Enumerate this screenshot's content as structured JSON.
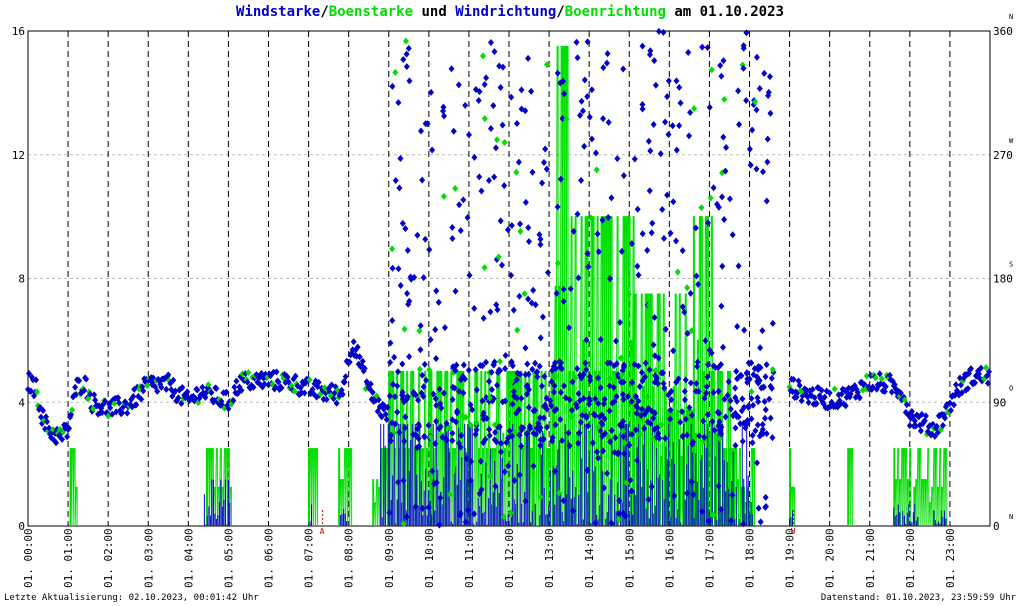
{
  "title": {
    "part1": "Windstarke",
    "sep1": "/",
    "part2": "Boenstarke",
    "part3": " und ",
    "part4": "Windrichtung",
    "sep2": "/",
    "part5": "Boenrichtung",
    "part6": " am 01.10.2023"
  },
  "footer": {
    "left": "Letzte Aktualisierung: 02.10.2023, 00:01:42 Uhr",
    "right": "Datenstand: 01.10.2023, 23:59:59 Uhr"
  },
  "colors": {
    "wind": "#0000cc",
    "gust": "#00dd00",
    "grid_major": "#000000",
    "grid_minor": "#bbbbbb",
    "marker": "#cc0000"
  },
  "chart_data": {
    "type": "line",
    "x_unit": "hour",
    "xlim": [
      0,
      24
    ],
    "ylim": [
      0,
      16
    ],
    "y2lim": [
      0,
      360
    ],
    "y_ticks": [
      "0",
      "4",
      "8",
      "12",
      "16"
    ],
    "y2_ticks": [
      "0",
      "90",
      "180",
      "270",
      "360"
    ],
    "compass_labels": [
      {
        "value": 0,
        "label": "N"
      },
      {
        "value": 90,
        "label": "O"
      },
      {
        "value": 180,
        "label": "S"
      },
      {
        "value": 270,
        "label": "W"
      },
      {
        "value": 360,
        "label": "N"
      }
    ],
    "x_tick_labels": [
      "01. 00:00",
      "01. 01:00",
      "01. 02:00",
      "01. 03:00",
      "01. 04:00",
      "01. 05:00",
      "01. 06:00",
      "01. 07:00",
      "01. 08:00",
      "01. 09:00",
      "01. 10:00",
      "01. 11:00",
      "01. 12:00",
      "01. 13:00",
      "01. 14:00",
      "01. 15:00",
      "01. 16:00",
      "01. 17:00",
      "01. 18:00",
      "01. 19:00",
      "01. 20:00",
      "01. 21:00",
      "01. 22:00",
      "01. 23:00"
    ],
    "markers": [
      {
        "hour": 7.35,
        "label": "A"
      },
      {
        "hour": 19.1,
        "label": "U"
      }
    ],
    "grid": true,
    "gust_bursts": [
      {
        "start": 1.05,
        "end": 1.2,
        "value": 2.5
      },
      {
        "start": 4.45,
        "end": 5.05,
        "value": 2.5
      },
      {
        "start": 7.0,
        "end": 7.2,
        "value": 2.5
      },
      {
        "start": 7.75,
        "end": 8.05,
        "value": 2.5
      },
      {
        "start": 8.6,
        "end": 9.0,
        "value": 2.5
      },
      {
        "start": 9.0,
        "end": 10.05,
        "value": 5
      },
      {
        "start": 10.05,
        "end": 12.6,
        "value": 5
      },
      {
        "start": 12.6,
        "end": 13.1,
        "value": 5
      },
      {
        "start": 13.1,
        "end": 13.45,
        "value": 15.5
      },
      {
        "start": 13.45,
        "end": 15.1,
        "value": 10
      },
      {
        "start": 15.1,
        "end": 16.6,
        "value": 7.5
      },
      {
        "start": 16.6,
        "end": 17.05,
        "value": 10
      },
      {
        "start": 17.05,
        "end": 17.5,
        "value": 5
      },
      {
        "start": 17.5,
        "end": 18.1,
        "value": 2.5
      },
      {
        "start": 19.0,
        "end": 19.1,
        "value": 2.5
      },
      {
        "start": 20.45,
        "end": 20.55,
        "value": 2.5
      },
      {
        "start": 21.6,
        "end": 22.0,
        "value": 2.5
      },
      {
        "start": 22.1,
        "end": 22.9,
        "value": 2.5
      }
    ],
    "wind_bursts": [
      {
        "start": 4.4,
        "end": 5.05,
        "value": 1.5
      },
      {
        "start": 7.0,
        "end": 7.1,
        "value": 1
      },
      {
        "start": 7.8,
        "end": 7.95,
        "value": 1
      },
      {
        "start": 8.8,
        "end": 18.1,
        "value": 3.3
      },
      {
        "start": 19.0,
        "end": 19.1,
        "value": 0.5
      },
      {
        "start": 21.6,
        "end": 22.2,
        "value": 0.7
      },
      {
        "start": 22.6,
        "end": 22.9,
        "value": 0.5
      }
    ],
    "direction_path": [
      [
        0.0,
        105
      ],
      [
        0.2,
        100
      ],
      [
        0.4,
        75
      ],
      [
        0.6,
        68
      ],
      [
        0.8,
        65
      ],
      [
        1.0,
        70
      ],
      [
        1.2,
        100
      ],
      [
        1.4,
        105
      ],
      [
        1.6,
        90
      ],
      [
        2.0,
        85
      ],
      [
        2.5,
        88
      ],
      [
        3.0,
        103
      ],
      [
        3.5,
        103
      ],
      [
        4.0,
        90
      ],
      [
        4.3,
        98
      ],
      [
        4.6,
        95
      ],
      [
        5.0,
        90
      ],
      [
        5.3,
        105
      ],
      [
        6.0,
        106
      ],
      [
        6.5,
        105
      ],
      [
        7.0,
        100
      ],
      [
        7.3,
        98
      ],
      [
        7.8,
        95
      ],
      [
        8.1,
        135
      ],
      [
        8.5,
        100
      ],
      [
        8.8,
        85
      ],
      [
        9.0,
        80
      ],
      [
        19.0,
        102
      ],
      [
        19.5,
        95
      ],
      [
        20.0,
        92
      ],
      [
        20.5,
        95
      ],
      [
        21.0,
        105
      ],
      [
        21.5,
        103
      ],
      [
        21.8,
        98
      ],
      [
        22.0,
        80
      ],
      [
        22.3,
        75
      ],
      [
        22.6,
        70
      ],
      [
        22.9,
        82
      ],
      [
        23.2,
        100
      ],
      [
        23.5,
        108
      ],
      [
        24.0,
        110
      ]
    ],
    "direction_scatter": {
      "start": 9.0,
      "end": 18.6,
      "min": 0,
      "max": 360
    }
  }
}
